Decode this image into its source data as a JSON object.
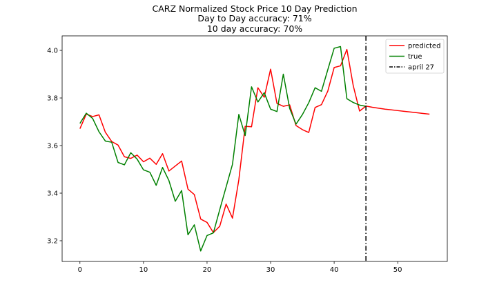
{
  "chart_data": {
    "type": "line",
    "title_lines": [
      "CARZ Normalized Stock Price 10 Day Prediction",
      "Day to Day accuracy: 71%",
      "10 day accuracy: 70%"
    ],
    "xlabel": "",
    "ylabel": "",
    "xlim": [
      -2.8,
      57.8
    ],
    "ylim": [
      3.113,
      4.061
    ],
    "xticks": [
      0,
      10,
      20,
      30,
      40,
      50
    ],
    "yticks": [
      3.2,
      3.4,
      3.6,
      3.8,
      4.0
    ],
    "ytick_labels": [
      "3.2",
      "3.4",
      "3.6",
      "3.8",
      "4.0"
    ],
    "grid": false,
    "legend_position": "top-right",
    "series": [
      {
        "name": "predicted",
        "color": "#ff0000",
        "x": [
          0,
          1,
          2,
          3,
          4,
          5,
          6,
          7,
          8,
          9,
          10,
          11,
          12,
          13,
          14,
          15,
          16,
          17,
          18,
          19,
          20,
          21,
          22,
          23,
          24,
          25,
          26,
          27,
          28,
          29,
          30,
          31,
          32,
          33,
          34,
          35,
          36,
          37,
          38,
          39,
          40,
          41,
          42,
          43,
          44,
          45,
          46,
          47,
          48,
          49,
          50,
          51,
          52,
          53,
          54,
          55
        ],
        "values": [
          3.671,
          3.732,
          3.722,
          3.729,
          3.656,
          3.617,
          3.602,
          3.553,
          3.546,
          3.56,
          3.532,
          3.547,
          3.521,
          3.566,
          3.493,
          3.514,
          3.535,
          3.417,
          3.394,
          3.291,
          3.277,
          3.234,
          3.261,
          3.354,
          3.295,
          3.456,
          3.681,
          3.679,
          3.843,
          3.803,
          3.921,
          3.777,
          3.765,
          3.771,
          3.684,
          3.667,
          3.655,
          3.76,
          3.772,
          3.829,
          3.928,
          3.935,
          4.004,
          3.852,
          3.745,
          3.766,
          3.761,
          3.757,
          3.753,
          3.75,
          3.747,
          3.744,
          3.741,
          3.738,
          3.735,
          3.732
        ]
      },
      {
        "name": "true",
        "color": "#008000",
        "x": [
          0,
          1,
          2,
          3,
          4,
          5,
          6,
          7,
          8,
          9,
          10,
          11,
          12,
          13,
          14,
          15,
          16,
          17,
          18,
          19,
          20,
          21,
          22,
          23,
          24,
          25,
          26,
          27,
          28,
          29,
          30,
          31,
          32,
          33,
          34,
          35,
          36,
          37,
          38,
          39,
          40,
          41,
          42,
          43,
          44,
          45
        ],
        "values": [
          3.693,
          3.736,
          3.714,
          3.658,
          3.619,
          3.614,
          3.529,
          3.519,
          3.57,
          3.543,
          3.498,
          3.488,
          3.433,
          3.508,
          3.453,
          3.366,
          3.411,
          3.225,
          3.267,
          3.157,
          3.222,
          3.233,
          3.331,
          3.426,
          3.521,
          3.731,
          3.642,
          3.847,
          3.783,
          3.822,
          3.753,
          3.743,
          3.9,
          3.756,
          3.69,
          3.73,
          3.78,
          3.843,
          3.828,
          3.919,
          4.009,
          4.016,
          3.797,
          3.781,
          3.77,
          3.765
        ]
      }
    ],
    "vline": {
      "x": 45,
      "label": "april 27",
      "color": "#000000",
      "style": "dash-dot"
    }
  }
}
